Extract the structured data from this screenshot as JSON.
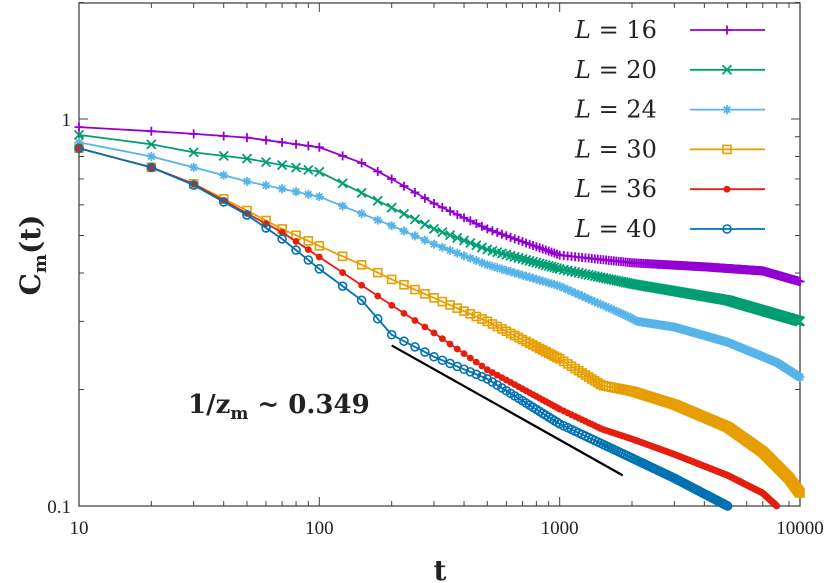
{
  "chart_data": {
    "type": "line",
    "title": "",
    "xlabel": "t",
    "ylabel_main": "C",
    "ylabel_sub": "m",
    "ylabel_tail": "(t)",
    "xscale": "log",
    "yscale": "log",
    "xlim": [
      10,
      10000
    ],
    "ylim": [
      0.1,
      2
    ],
    "x_ticks": [
      10,
      100,
      1000,
      10000
    ],
    "x_tick_labels": [
      "10",
      "100",
      "1000",
      "10000"
    ],
    "y_ticks": [
      0.1,
      1
    ],
    "y_tick_labels": [
      "0.1",
      "1"
    ],
    "grid": false,
    "legend_position": "top-right",
    "series": [
      {
        "name": "L = 16",
        "name_var": "L",
        "name_val": "= 16",
        "color": "#9400d3",
        "marker": "plus",
        "points": [
          [
            10,
            0.953
          ],
          [
            20,
            0.93
          ],
          [
            30,
            0.915
          ],
          [
            50,
            0.895
          ],
          [
            100,
            0.845
          ],
          [
            150,
            0.77
          ],
          [
            200,
            0.7
          ],
          [
            300,
            0.605
          ],
          [
            500,
            0.52
          ],
          [
            1000,
            0.445
          ],
          [
            2000,
            0.425
          ],
          [
            4000,
            0.415
          ],
          [
            7000,
            0.405
          ],
          [
            10000,
            0.38
          ]
        ]
      },
      {
        "name": "L = 20",
        "name_var": "L",
        "name_val": "= 20",
        "color": "#009e73",
        "marker": "cross",
        "points": [
          [
            10,
            0.91
          ],
          [
            20,
            0.86
          ],
          [
            30,
            0.82
          ],
          [
            50,
            0.79
          ],
          [
            100,
            0.73
          ],
          [
            200,
            0.59
          ],
          [
            300,
            0.52
          ],
          [
            500,
            0.46
          ],
          [
            1000,
            0.41
          ],
          [
            2000,
            0.375
          ],
          [
            5000,
            0.34
          ],
          [
            10000,
            0.3
          ]
        ]
      },
      {
        "name": "L = 24",
        "name_var": "L",
        "name_val": "= 24",
        "color": "#56b4e9",
        "marker": "star",
        "points": [
          [
            10,
            0.87
          ],
          [
            20,
            0.8
          ],
          [
            30,
            0.75
          ],
          [
            50,
            0.69
          ],
          [
            100,
            0.63
          ],
          [
            200,
            0.53
          ],
          [
            300,
            0.475
          ],
          [
            500,
            0.42
          ],
          [
            1000,
            0.37
          ],
          [
            1900,
            0.31
          ],
          [
            2100,
            0.3
          ],
          [
            3000,
            0.29
          ],
          [
            5000,
            0.265
          ],
          [
            8000,
            0.235
          ],
          [
            10000,
            0.215
          ]
        ]
      },
      {
        "name": "L = 30",
        "name_var": "L",
        "name_val": "= 30",
        "color": "#e69f00",
        "marker": "square",
        "points": [
          [
            10,
            0.84
          ],
          [
            20,
            0.75
          ],
          [
            30,
            0.68
          ],
          [
            50,
            0.58
          ],
          [
            70,
            0.52
          ],
          [
            100,
            0.47
          ],
          [
            150,
            0.42
          ],
          [
            200,
            0.385
          ],
          [
            300,
            0.345
          ],
          [
            500,
            0.3
          ],
          [
            1000,
            0.24
          ],
          [
            1500,
            0.205
          ],
          [
            2000,
            0.198
          ],
          [
            3000,
            0.183
          ],
          [
            5000,
            0.16
          ],
          [
            7000,
            0.138
          ],
          [
            9000,
            0.118
          ],
          [
            10000,
            0.108
          ]
        ]
      },
      {
        "name": "L = 36",
        "name_var": "L",
        "name_val": "= 36",
        "color": "#e51e10",
        "marker": "dot",
        "points": [
          [
            10,
            0.84
          ],
          [
            20,
            0.75
          ],
          [
            30,
            0.68
          ],
          [
            50,
            0.57
          ],
          [
            70,
            0.51
          ],
          [
            100,
            0.44
          ],
          [
            200,
            0.33
          ],
          [
            300,
            0.28
          ],
          [
            500,
            0.225
          ],
          [
            1000,
            0.178
          ],
          [
            1500,
            0.158
          ],
          [
            2000,
            0.149
          ],
          [
            3000,
            0.136
          ],
          [
            5000,
            0.12
          ],
          [
            7000,
            0.108
          ],
          [
            8000,
            0.1
          ]
        ]
      },
      {
        "name": "L = 40",
        "name_var": "L",
        "name_val": "= 40",
        "color": "#0072b2",
        "marker": "circle",
        "points": [
          [
            10,
            0.84
          ],
          [
            20,
            0.75
          ],
          [
            30,
            0.675
          ],
          [
            50,
            0.565
          ],
          [
            70,
            0.49
          ],
          [
            100,
            0.41
          ],
          [
            150,
            0.34
          ],
          [
            200,
            0.277
          ],
          [
            300,
            0.243
          ],
          [
            500,
            0.213
          ],
          [
            1000,
            0.163
          ],
          [
            2000,
            0.133
          ],
          [
            3000,
            0.118
          ],
          [
            5000,
            0.1
          ]
        ]
      }
    ],
    "fit_line": {
      "points": [
        [
          200,
          0.26
        ],
        [
          1830,
          0.12
        ]
      ],
      "color": "#000000"
    },
    "annotation": {
      "prefix": "1/z",
      "sub": "m",
      "suffix": " ~ 0.349"
    }
  }
}
